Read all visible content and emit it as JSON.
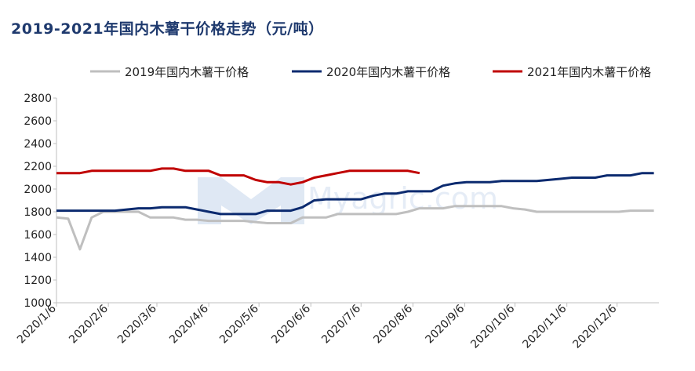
{
  "chart_data": {
    "type": "line",
    "title": "2019-2021年国内木薯干价格走势（元/吨）",
    "xlabel": "",
    "ylabel": "",
    "ylim": [
      1000,
      2800
    ],
    "yticks": [
      1000,
      1200,
      1400,
      1600,
      1800,
      2000,
      2200,
      2400,
      2600,
      2800
    ],
    "xlim": [
      "2020/1/6",
      "2020/12/31"
    ],
    "x_tick_labels": [
      "2020/1/6",
      "2020/2/6",
      "2020/3/6",
      "2020/4/6",
      "2020/5/6",
      "2020/6/6",
      "2020/7/6",
      "2020/8/6",
      "2020/9/6",
      "2020/10/6",
      "2020/11/6",
      "2020/12/6"
    ],
    "legend_position": "top",
    "grid": false,
    "watermark": "我的农产品 Myagric.com",
    "series": [
      {
        "name": "2019年国内木薯干价格",
        "color": "#bfbfbf",
        "points": [
          [
            "2020/1/6",
            1750
          ],
          [
            "2020/1/13",
            1740
          ],
          [
            "2020/1/20",
            1470
          ],
          [
            "2020/1/27",
            1750
          ],
          [
            "2020/2/3",
            1800
          ],
          [
            "2020/2/10",
            1800
          ],
          [
            "2020/2/17",
            1800
          ],
          [
            "2020/2/24",
            1800
          ],
          [
            "2020/3/2",
            1750
          ],
          [
            "2020/3/9",
            1750
          ],
          [
            "2020/3/16",
            1750
          ],
          [
            "2020/3/23",
            1730
          ],
          [
            "2020/3/30",
            1730
          ],
          [
            "2020/4/6",
            1720
          ],
          [
            "2020/4/13",
            1720
          ],
          [
            "2020/4/20",
            1720
          ],
          [
            "2020/4/27",
            1720
          ],
          [
            "2020/5/4",
            1710
          ],
          [
            "2020/5/11",
            1700
          ],
          [
            "2020/5/18",
            1700
          ],
          [
            "2020/5/25",
            1700
          ],
          [
            "2020/6/1",
            1750
          ],
          [
            "2020/6/8",
            1750
          ],
          [
            "2020/6/15",
            1750
          ],
          [
            "2020/6/22",
            1780
          ],
          [
            "2020/6/29",
            1780
          ],
          [
            "2020/7/6",
            1780
          ],
          [
            "2020/7/13",
            1780
          ],
          [
            "2020/7/20",
            1780
          ],
          [
            "2020/7/27",
            1780
          ],
          [
            "2020/8/3",
            1800
          ],
          [
            "2020/8/10",
            1830
          ],
          [
            "2020/8/17",
            1830
          ],
          [
            "2020/8/24",
            1830
          ],
          [
            "2020/8/31",
            1850
          ],
          [
            "2020/9/7",
            1850
          ],
          [
            "2020/9/14",
            1850
          ],
          [
            "2020/9/21",
            1850
          ],
          [
            "2020/9/28",
            1850
          ],
          [
            "2020/10/5",
            1830
          ],
          [
            "2020/10/12",
            1820
          ],
          [
            "2020/10/19",
            1800
          ],
          [
            "2020/10/26",
            1800
          ],
          [
            "2020/11/2",
            1800
          ],
          [
            "2020/11/9",
            1800
          ],
          [
            "2020/11/16",
            1800
          ],
          [
            "2020/11/23",
            1800
          ],
          [
            "2020/11/30",
            1800
          ],
          [
            "2020/12/7",
            1800
          ],
          [
            "2020/12/14",
            1810
          ],
          [
            "2020/12/21",
            1810
          ],
          [
            "2020/12/28",
            1810
          ]
        ]
      },
      {
        "name": "2020年国内木薯干价格",
        "color": "#0b2a6f",
        "points": [
          [
            "2020/1/6",
            1810
          ],
          [
            "2020/1/13",
            1810
          ],
          [
            "2020/1/20",
            1810
          ],
          [
            "2020/1/27",
            1810
          ],
          [
            "2020/2/3",
            1810
          ],
          [
            "2020/2/10",
            1810
          ],
          [
            "2020/2/17",
            1820
          ],
          [
            "2020/2/24",
            1830
          ],
          [
            "2020/3/2",
            1830
          ],
          [
            "2020/3/9",
            1840
          ],
          [
            "2020/3/16",
            1840
          ],
          [
            "2020/3/23",
            1840
          ],
          [
            "2020/3/30",
            1820
          ],
          [
            "2020/4/6",
            1800
          ],
          [
            "2020/4/13",
            1780
          ],
          [
            "2020/4/20",
            1780
          ],
          [
            "2020/4/27",
            1780
          ],
          [
            "2020/5/4",
            1780
          ],
          [
            "2020/5/11",
            1810
          ],
          [
            "2020/5/18",
            1810
          ],
          [
            "2020/5/25",
            1810
          ],
          [
            "2020/6/1",
            1840
          ],
          [
            "2020/6/8",
            1900
          ],
          [
            "2020/6/15",
            1910
          ],
          [
            "2020/6/22",
            1910
          ],
          [
            "2020/6/29",
            1910
          ],
          [
            "2020/7/6",
            1910
          ],
          [
            "2020/7/13",
            1940
          ],
          [
            "2020/7/20",
            1960
          ],
          [
            "2020/7/27",
            1960
          ],
          [
            "2020/8/3",
            1980
          ],
          [
            "2020/8/10",
            1980
          ],
          [
            "2020/8/17",
            1980
          ],
          [
            "2020/8/24",
            2030
          ],
          [
            "2020/8/31",
            2050
          ],
          [
            "2020/9/7",
            2060
          ],
          [
            "2020/9/14",
            2060
          ],
          [
            "2020/9/21",
            2060
          ],
          [
            "2020/9/28",
            2070
          ],
          [
            "2020/10/5",
            2070
          ],
          [
            "2020/10/12",
            2070
          ],
          [
            "2020/10/19",
            2070
          ],
          [
            "2020/10/26",
            2080
          ],
          [
            "2020/11/2",
            2090
          ],
          [
            "2020/11/9",
            2100
          ],
          [
            "2020/11/16",
            2100
          ],
          [
            "2020/11/23",
            2100
          ],
          [
            "2020/11/30",
            2120
          ],
          [
            "2020/12/7",
            2120
          ],
          [
            "2020/12/14",
            2120
          ],
          [
            "2020/12/21",
            2140
          ],
          [
            "2020/12/28",
            2140
          ]
        ]
      },
      {
        "name": "2021年国内木薯干价格",
        "color": "#c00000",
        "points": [
          [
            "2020/1/6",
            2140
          ],
          [
            "2020/1/13",
            2140
          ],
          [
            "2020/1/20",
            2140
          ],
          [
            "2020/1/27",
            2160
          ],
          [
            "2020/2/3",
            2160
          ],
          [
            "2020/2/10",
            2160
          ],
          [
            "2020/2/17",
            2160
          ],
          [
            "2020/2/24",
            2160
          ],
          [
            "2020/3/2",
            2160
          ],
          [
            "2020/3/9",
            2180
          ],
          [
            "2020/3/16",
            2180
          ],
          [
            "2020/3/23",
            2160
          ],
          [
            "2020/3/30",
            2160
          ],
          [
            "2020/4/6",
            2160
          ],
          [
            "2020/4/13",
            2120
          ],
          [
            "2020/4/20",
            2120
          ],
          [
            "2020/4/27",
            2120
          ],
          [
            "2020/5/4",
            2080
          ],
          [
            "2020/5/11",
            2060
          ],
          [
            "2020/5/18",
            2060
          ],
          [
            "2020/5/25",
            2040
          ],
          [
            "2020/6/1",
            2060
          ],
          [
            "2020/6/8",
            2100
          ],
          [
            "2020/6/15",
            2120
          ],
          [
            "2020/6/22",
            2140
          ],
          [
            "2020/6/29",
            2160
          ],
          [
            "2020/7/6",
            2160
          ],
          [
            "2020/7/13",
            2160
          ],
          [
            "2020/7/20",
            2160
          ],
          [
            "2020/7/27",
            2160
          ],
          [
            "2020/8/3",
            2160
          ],
          [
            "2020/8/10",
            2140
          ]
        ]
      }
    ]
  }
}
